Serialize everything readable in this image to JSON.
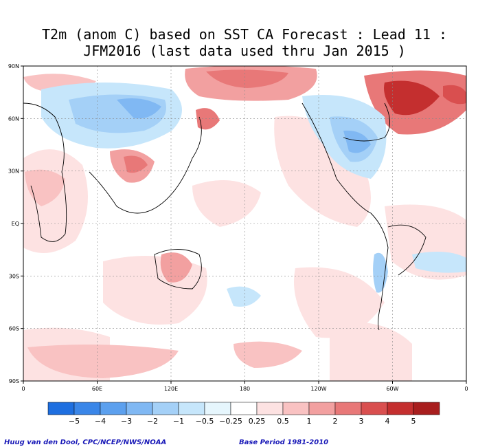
{
  "title_line1": "T2m (anom C) based on SST CA Forecast : Lead 11 :",
  "title_line2": "JFM2016 (last data used thru Jan 2015 )",
  "map": {
    "lat_labels": [
      "90N",
      "60N",
      "30N",
      "EQ",
      "30S",
      "60S",
      "90S"
    ],
    "lon_labels": [
      "0",
      "60E",
      "120E",
      "180",
      "120W",
      "60W",
      "0"
    ]
  },
  "colorbar": {
    "labels": [
      "−5",
      "−4",
      "−3",
      "−2",
      "−1",
      "−0.5",
      "−0.25",
      "0.25",
      "0.5",
      "1",
      "2",
      "3",
      "4",
      "5"
    ],
    "colors": [
      "#1e6fe0",
      "#3a86e8",
      "#5ca0ee",
      "#80b8f3",
      "#a4d0f7",
      "#c6e6fb",
      "#e6f6fd",
      "#ffffff",
      "#fde2e2",
      "#f9c2c2",
      "#f2a0a0",
      "#e87878",
      "#d94f4f",
      "#c42f2f",
      "#a81e1e"
    ]
  },
  "footer": {
    "left": "Huug van den Dool, CPC/NCEP/NWS/NOAA",
    "right": "Base Period 1981-2010"
  }
}
